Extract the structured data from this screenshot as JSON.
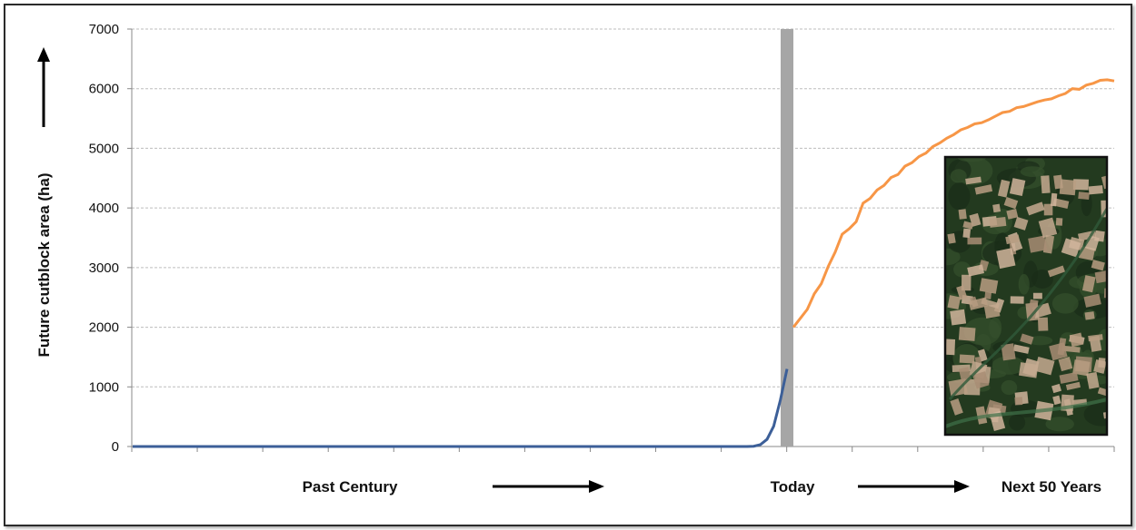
{
  "chart_data": {
    "type": "line",
    "ylabel": "Future cutblock area (ha)",
    "ylim": [
      0,
      7000
    ],
    "yticks": [
      "0",
      "1000",
      "2000",
      "3000",
      "4000",
      "5000",
      "6000",
      "7000"
    ],
    "grid": true,
    "x_labels": [
      "Past Century",
      "Today",
      "Next 50 Years"
    ],
    "colors": {
      "past": "#3c5f98",
      "future": "#f79646",
      "today_bar": "#a6a6a6"
    },
    "series": [
      {
        "values": [
          0,
          0,
          0,
          0,
          0,
          0,
          0,
          0,
          0,
          0,
          0,
          0,
          0,
          0,
          0,
          0,
          0,
          0,
          0,
          0,
          0,
          0,
          0,
          0,
          0,
          0,
          0,
          0,
          0,
          0,
          0,
          0,
          0,
          0,
          0,
          0,
          0,
          0,
          0,
          0,
          0,
          0,
          0,
          0,
          0,
          0,
          0,
          0,
          0,
          0,
          0,
          0,
          0,
          0,
          0,
          0,
          0,
          0,
          0,
          0,
          0,
          0,
          0,
          0,
          0,
          0,
          0,
          0,
          0,
          0,
          0,
          0,
          0,
          0,
          0,
          0,
          0,
          0,
          0,
          0,
          0,
          0,
          0,
          0,
          0,
          0,
          0,
          0,
          0,
          0,
          0,
          0,
          0,
          5,
          30,
          120,
          340,
          780,
          1300
        ]
      },
      {
        "values": [
          2000,
          2150,
          2300,
          2560,
          2730,
          3020,
          3260,
          3560,
          3650,
          3770,
          4080,
          4160,
          4300,
          4380,
          4510,
          4560,
          4700,
          4760,
          4860,
          4920,
          5030,
          5090,
          5170,
          5230,
          5310,
          5350,
          5410,
          5430,
          5480,
          5540,
          5600,
          5620,
          5680,
          5700,
          5740,
          5780,
          5810,
          5830,
          5880,
          5920,
          6000,
          5990,
          6060,
          6090,
          6140,
          6150,
          6130
        ]
      }
    ],
    "inset_image": "satellite-photo-of-forest-cutblocks"
  }
}
